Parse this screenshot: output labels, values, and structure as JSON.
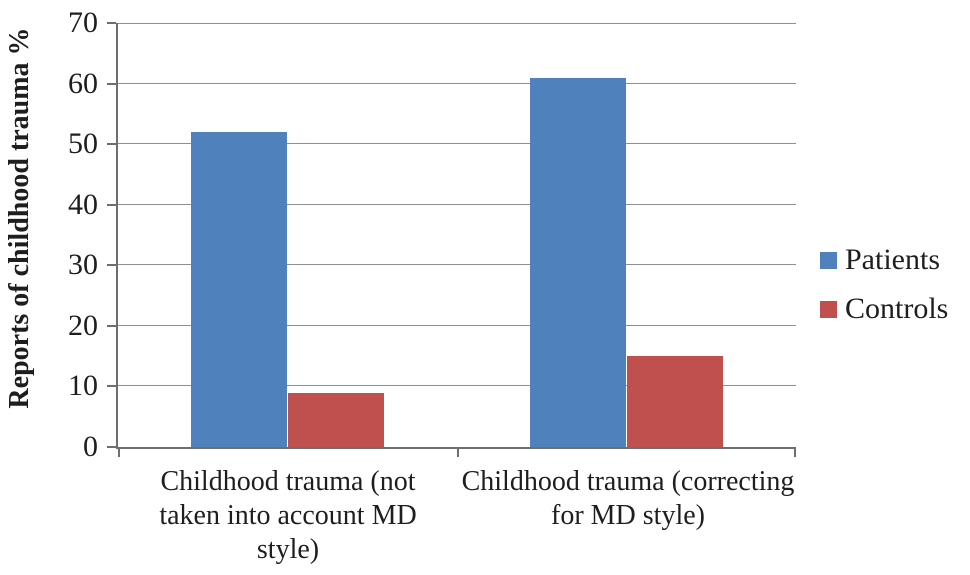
{
  "chart_data": {
    "type": "bar",
    "title": "",
    "xlabel": "",
    "ylabel": "Reports of childhood trauma %",
    "ylim": [
      0,
      70
    ],
    "yticks": [
      0,
      10,
      20,
      30,
      40,
      50,
      60,
      70
    ],
    "grid": true,
    "legend_position": "right",
    "categories": [
      "Childhood trauma (not taken into account MD style)",
      "Childhood trauma (correcting for MD style)"
    ],
    "series": [
      {
        "name": "Patients",
        "color": "#4f81bd",
        "values": [
          52,
          61
        ]
      },
      {
        "name": "Controls",
        "color": "#c0504d",
        "values": [
          9,
          15
        ]
      }
    ]
  },
  "colors": {
    "axis": "#6e6e6e",
    "gridline": "#8f8f8f",
    "text": "#1e1e1e",
    "background": "#ffffff"
  }
}
